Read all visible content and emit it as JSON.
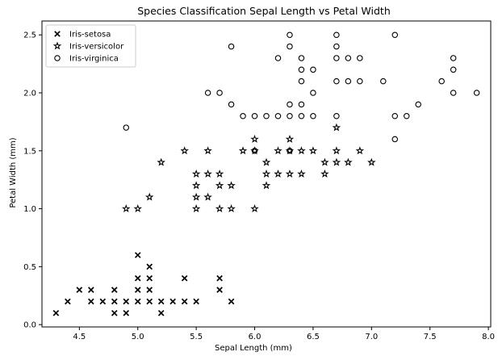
{
  "chart_data": {
    "type": "scatter",
    "title": "Species Classification Sepal Length vs Petal Width",
    "xlabel": "Sepal Length (mm)",
    "ylabel": "Petal Width (mm)",
    "xlim": [
      4.18,
      8.02
    ],
    "ylim": [
      -0.02,
      2.62
    ],
    "x_ticks": [
      "4.5",
      "5.0",
      "5.5",
      "6.0",
      "6.5",
      "7.0",
      "7.5",
      "8.0"
    ],
    "y_ticks": [
      "0.0",
      "0.5",
      "1.0",
      "1.5",
      "2.0",
      "2.5"
    ],
    "grid": false,
    "legend_position": "top-left",
    "marker_color": "#000000",
    "series": [
      {
        "name": "Iris-setosa",
        "marker": "x",
        "points": [
          [
            4.3,
            0.1
          ],
          [
            4.4,
            0.2
          ],
          [
            4.5,
            0.3
          ],
          [
            4.6,
            0.2
          ],
          [
            4.6,
            0.3
          ],
          [
            4.7,
            0.2
          ],
          [
            4.8,
            0.1
          ],
          [
            4.8,
            0.2
          ],
          [
            4.8,
            0.3
          ],
          [
            4.9,
            0.1
          ],
          [
            4.9,
            0.2
          ],
          [
            5.0,
            0.2
          ],
          [
            5.0,
            0.3
          ],
          [
            5.0,
            0.4
          ],
          [
            5.0,
            0.6
          ],
          [
            5.1,
            0.2
          ],
          [
            5.1,
            0.3
          ],
          [
            5.1,
            0.4
          ],
          [
            5.1,
            0.5
          ],
          [
            5.2,
            0.1
          ],
          [
            5.2,
            0.2
          ],
          [
            5.3,
            0.2
          ],
          [
            5.4,
            0.2
          ],
          [
            5.4,
            0.4
          ],
          [
            5.5,
            0.2
          ],
          [
            5.7,
            0.3
          ],
          [
            5.7,
            0.4
          ],
          [
            5.8,
            0.2
          ]
        ]
      },
      {
        "name": "Iris-versicolor",
        "marker": "star",
        "points": [
          [
            4.9,
            1.0
          ],
          [
            5.0,
            1.0
          ],
          [
            5.1,
            1.1
          ],
          [
            5.2,
            1.4
          ],
          [
            5.4,
            1.5
          ],
          [
            5.5,
            1.0
          ],
          [
            5.5,
            1.1
          ],
          [
            5.5,
            1.2
          ],
          [
            5.5,
            1.3
          ],
          [
            5.6,
            1.1
          ],
          [
            5.6,
            1.3
          ],
          [
            5.6,
            1.5
          ],
          [
            5.7,
            1.0
          ],
          [
            5.7,
            1.2
          ],
          [
            5.7,
            1.3
          ],
          [
            5.8,
            1.0
          ],
          [
            5.8,
            1.2
          ],
          [
            5.9,
            1.5
          ],
          [
            6.0,
            1.0
          ],
          [
            6.0,
            1.5
          ],
          [
            6.0,
            1.6
          ],
          [
            6.1,
            1.2
          ],
          [
            6.1,
            1.3
          ],
          [
            6.1,
            1.4
          ],
          [
            6.2,
            1.3
          ],
          [
            6.2,
            1.5
          ],
          [
            6.3,
            1.3
          ],
          [
            6.3,
            1.5
          ],
          [
            6.3,
            1.6
          ],
          [
            6.4,
            1.3
          ],
          [
            6.4,
            1.5
          ],
          [
            6.5,
            1.5
          ],
          [
            6.6,
            1.3
          ],
          [
            6.6,
            1.4
          ],
          [
            6.7,
            1.4
          ],
          [
            6.7,
            1.5
          ],
          [
            6.7,
            1.7
          ],
          [
            6.8,
            1.4
          ],
          [
            6.9,
            1.5
          ],
          [
            7.0,
            1.4
          ]
        ]
      },
      {
        "name": "Iris-virginica",
        "marker": "circle",
        "points": [
          [
            4.9,
            1.7
          ],
          [
            5.6,
            2.0
          ],
          [
            5.7,
            2.0
          ],
          [
            5.8,
            1.9
          ],
          [
            5.8,
            2.4
          ],
          [
            5.9,
            1.8
          ],
          [
            6.0,
            1.5
          ],
          [
            6.0,
            1.8
          ],
          [
            6.1,
            1.8
          ],
          [
            6.2,
            1.8
          ],
          [
            6.2,
            2.3
          ],
          [
            6.3,
            1.5
          ],
          [
            6.3,
            1.8
          ],
          [
            6.3,
            1.9
          ],
          [
            6.3,
            2.4
          ],
          [
            6.3,
            2.5
          ],
          [
            6.4,
            1.8
          ],
          [
            6.4,
            1.9
          ],
          [
            6.4,
            2.1
          ],
          [
            6.4,
            2.2
          ],
          [
            6.4,
            2.3
          ],
          [
            6.5,
            1.8
          ],
          [
            6.5,
            2.0
          ],
          [
            6.5,
            2.2
          ],
          [
            6.7,
            1.8
          ],
          [
            6.7,
            2.1
          ],
          [
            6.7,
            2.3
          ],
          [
            6.7,
            2.4
          ],
          [
            6.7,
            2.5
          ],
          [
            6.8,
            2.1
          ],
          [
            6.8,
            2.3
          ],
          [
            6.9,
            2.1
          ],
          [
            6.9,
            2.3
          ],
          [
            7.1,
            2.1
          ],
          [
            7.2,
            1.6
          ],
          [
            7.2,
            1.8
          ],
          [
            7.2,
            2.5
          ],
          [
            7.3,
            1.8
          ],
          [
            7.4,
            1.9
          ],
          [
            7.6,
            2.1
          ],
          [
            7.7,
            2.0
          ],
          [
            7.7,
            2.2
          ],
          [
            7.7,
            2.3
          ],
          [
            7.9,
            2.0
          ]
        ]
      }
    ]
  }
}
